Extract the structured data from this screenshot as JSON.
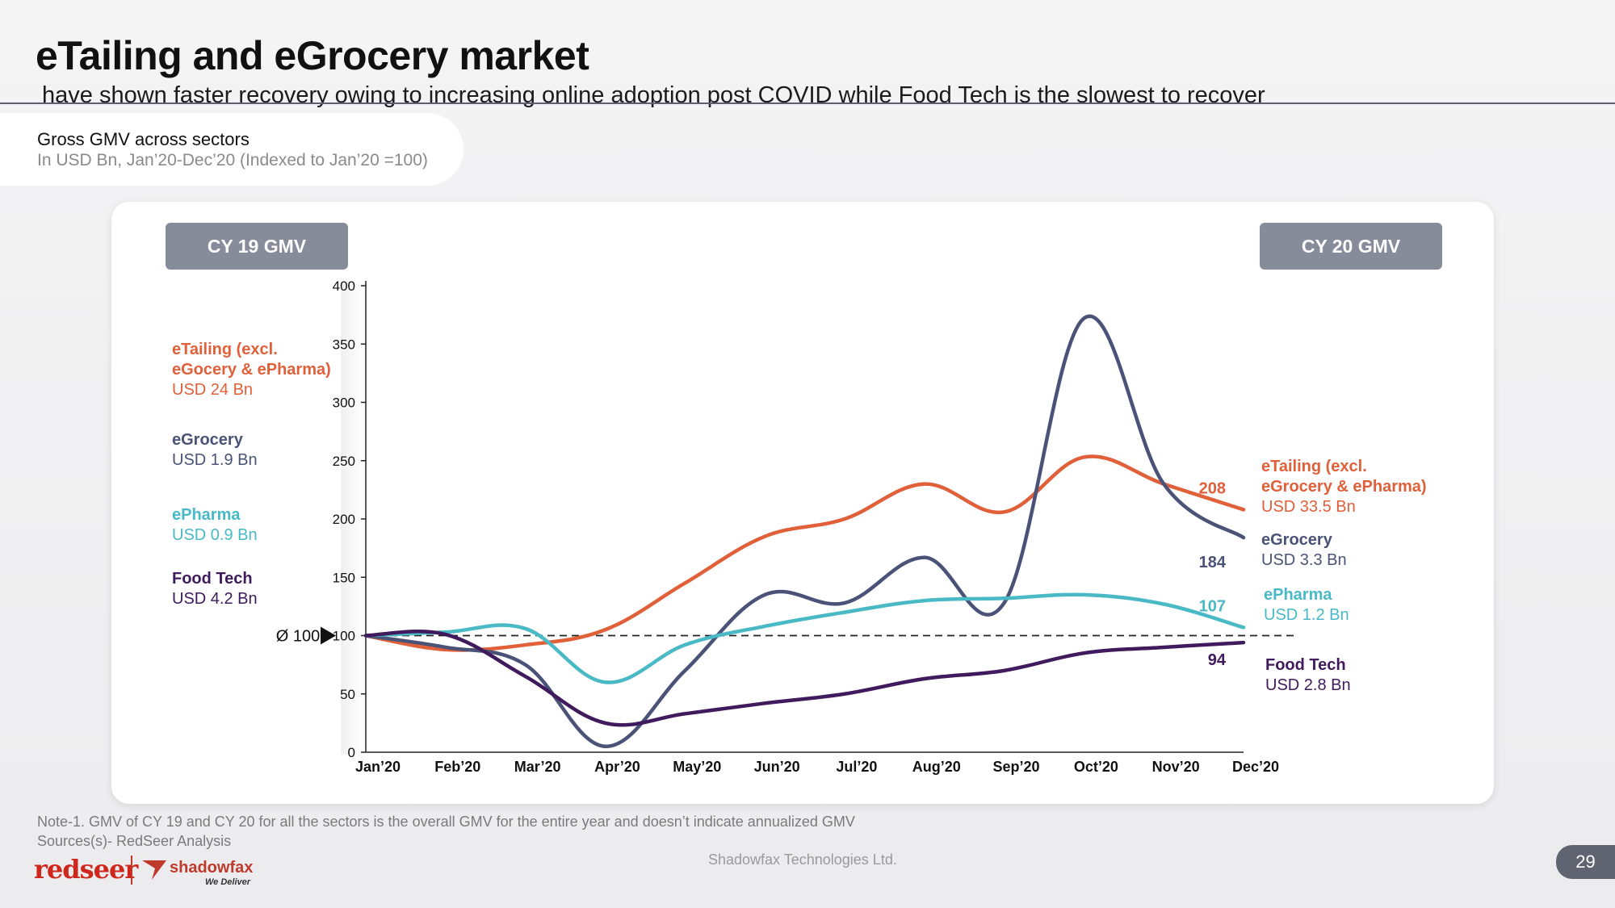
{
  "header": {
    "title": "eTailing and eGrocery market",
    "subtitle": "have shown faster recovery owing to increasing online adoption post COVID while Food Tech is the slowest to recover"
  },
  "info": {
    "title": "Gross GMV across sectors",
    "subtitle": "In USD Bn, Jan’20-Dec’20 (Indexed to Jan’20 =100)"
  },
  "cy19": {
    "pill": "CY 19 GMV",
    "items": [
      {
        "name_line1": "eTailing (excl.",
        "name_line2": "eGocery & ePharma)",
        "value": "USD 24 Bn",
        "color": "#e0603a"
      },
      {
        "name_line1": "eGrocery",
        "name_line2": "",
        "value": "USD 1.9 Bn",
        "color": "#4a5377"
      },
      {
        "name_line1": "ePharma",
        "name_line2": "",
        "value": "USD 0.9 Bn",
        "color": "#49b9c6"
      },
      {
        "name_line1": "Food Tech",
        "name_line2": "",
        "value": "USD 4.2 Bn",
        "color": "#3f1a5c"
      }
    ]
  },
  "cy20": {
    "pill": "CY 20 GMV",
    "items": [
      {
        "name_line1": "eTailing (excl.",
        "name_line2": "eGrocery & ePharma)",
        "value": "USD 33.5 Bn",
        "color": "#e0603a"
      },
      {
        "name_line1": "eGrocery",
        "name_line2": "",
        "value": "USD 3.3 Bn",
        "color": "#4a5377"
      },
      {
        "name_line1": "ePharma",
        "name_line2": "",
        "value": "USD 1.2 Bn",
        "color": "#49b9c6"
      },
      {
        "name_line1": "Food Tech",
        "name_line2": "",
        "value": "USD 2.8 Bn",
        "color": "#3f1a5c"
      }
    ]
  },
  "chart_data": {
    "type": "line",
    "categories": [
      "Jan’20",
      "Feb’20",
      "Mar’20",
      "Apr’20",
      "May’20",
      "Jun’20",
      "Jul’20",
      "Aug’20",
      "Sep’20",
      "Oct’20",
      "Nov’20",
      "Dec’20"
    ],
    "ylim": [
      0,
      400
    ],
    "yticks": [
      0,
      50,
      100,
      150,
      200,
      250,
      300,
      350,
      400
    ],
    "baseline": {
      "value": 100,
      "label": "Ø 100"
    },
    "series": [
      {
        "key": "etailing",
        "color": "#e0603a",
        "values": [
          100,
          88,
          92,
          105,
          145,
          185,
          200,
          230,
          206,
          253,
          230,
          208
        ],
        "end_label": "208"
      },
      {
        "key": "egrocery",
        "color": "#4a5377",
        "values": [
          100,
          90,
          75,
          5,
          70,
          135,
          128,
          167,
          128,
          372,
          230,
          184
        ],
        "end_label": "184"
      },
      {
        "key": "epharma",
        "color": "#49b9c6",
        "values": [
          100,
          103,
          106,
          60,
          92,
          108,
          120,
          130,
          132,
          135,
          127,
          107
        ],
        "end_label": "107"
      },
      {
        "key": "foodtech",
        "color": "#3f1a5c",
        "values": [
          100,
          101,
          65,
          25,
          33,
          42,
          50,
          63,
          70,
          85,
          90,
          94
        ],
        "end_label": "94"
      }
    ]
  },
  "footer": {
    "note": "Note-1. GMV of CY 19 and CY 20 for all the sectors is the overall GMV for the entire year and doesn’t indicate annualized GMV",
    "source": "Sources(s)- RedSeer Analysis",
    "company": "Shadowfax Technologies Ltd.",
    "page": "29",
    "logo_redseer": "redseer",
    "logo_shadowfax": "shadowfax",
    "logo_tagline": "We Deliver"
  }
}
